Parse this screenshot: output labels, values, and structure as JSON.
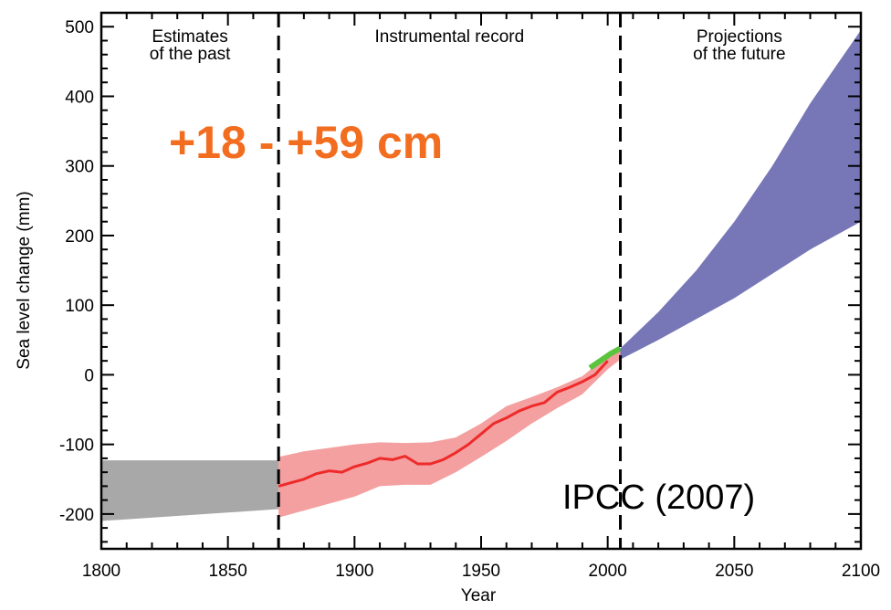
{
  "chart_data": {
    "type": "area",
    "xlabel": "Year",
    "ylabel": "Sea level change (mm)",
    "xlim": [
      1800,
      2100
    ],
    "ylim": [
      -250,
      520
    ],
    "xticks": [
      1800,
      1850,
      1900,
      1950,
      2000,
      2050,
      2100
    ],
    "yticks": [
      -200,
      -100,
      0,
      100,
      200,
      300,
      400,
      500
    ],
    "ytick_labels": [
      "-200",
      "-100",
      "0",
      "100",
      "200",
      "300",
      "400",
      "500"
    ],
    "dividers": [
      1870,
      2005
    ],
    "periods": [
      {
        "label_lines": [
          "Estimates",
          "of the past"
        ],
        "x_center": 1835
      },
      {
        "label_lines": [
          "Instrumental record"
        ],
        "x_center": 1937.5
      },
      {
        "label_lines": [
          "Projections",
          "of the future"
        ],
        "x_center": 2052
      }
    ],
    "annotations": {
      "highlight": "+18 - +59 cm",
      "source": "IPCC (2007)"
    },
    "series": [
      {
        "kind": "band",
        "color": "#a8a8a8",
        "x": [
          1800,
          1870
        ],
        "upper": [
          -123,
          -123
        ],
        "lower": [
          -210,
          -193
        ]
      },
      {
        "kind": "band",
        "color": "#f4a0a0",
        "x": [
          1870,
          1880,
          1890,
          1900,
          1910,
          1920,
          1930,
          1940,
          1950,
          1960,
          1970,
          1980,
          1990,
          2000,
          2005
        ],
        "upper": [
          -118,
          -110,
          -105,
          -100,
          -97,
          -98,
          -97,
          -90,
          -70,
          -45,
          -32,
          -18,
          -2,
          28,
          38
        ],
        "lower": [
          -205,
          -195,
          -185,
          -175,
          -160,
          -158,
          -158,
          -140,
          -118,
          -95,
          -70,
          -48,
          -28,
          8,
          22
        ]
      },
      {
        "kind": "line",
        "color": "#ee2a2a",
        "x": [
          1870,
          1875,
          1880,
          1885,
          1890,
          1895,
          1900,
          1905,
          1910,
          1915,
          1920,
          1925,
          1930,
          1935,
          1940,
          1945,
          1950,
          1955,
          1960,
          1965,
          1970,
          1975,
          1980,
          1985,
          1990,
          1995,
          2000
        ],
        "values": [
          -160,
          -155,
          -150,
          -142,
          -138,
          -140,
          -132,
          -127,
          -120,
          -122,
          -117,
          -128,
          -128,
          -122,
          -112,
          -100,
          -85,
          -70,
          -62,
          -52,
          -45,
          -40,
          -25,
          -18,
          -10,
          0,
          20
        ]
      },
      {
        "kind": "line",
        "color": "#5ac43c",
        "x": [
          1993,
          1997,
          2001,
          2005
        ],
        "values": [
          10,
          20,
          30,
          38
        ]
      },
      {
        "kind": "band",
        "color": "#7777b8",
        "x": [
          2005,
          2020,
          2035,
          2050,
          2065,
          2080,
          2100
        ],
        "upper": [
          38,
          90,
          150,
          220,
          300,
          390,
          495
        ],
        "lower": [
          22,
          50,
          80,
          110,
          145,
          180,
          220
        ]
      }
    ]
  }
}
